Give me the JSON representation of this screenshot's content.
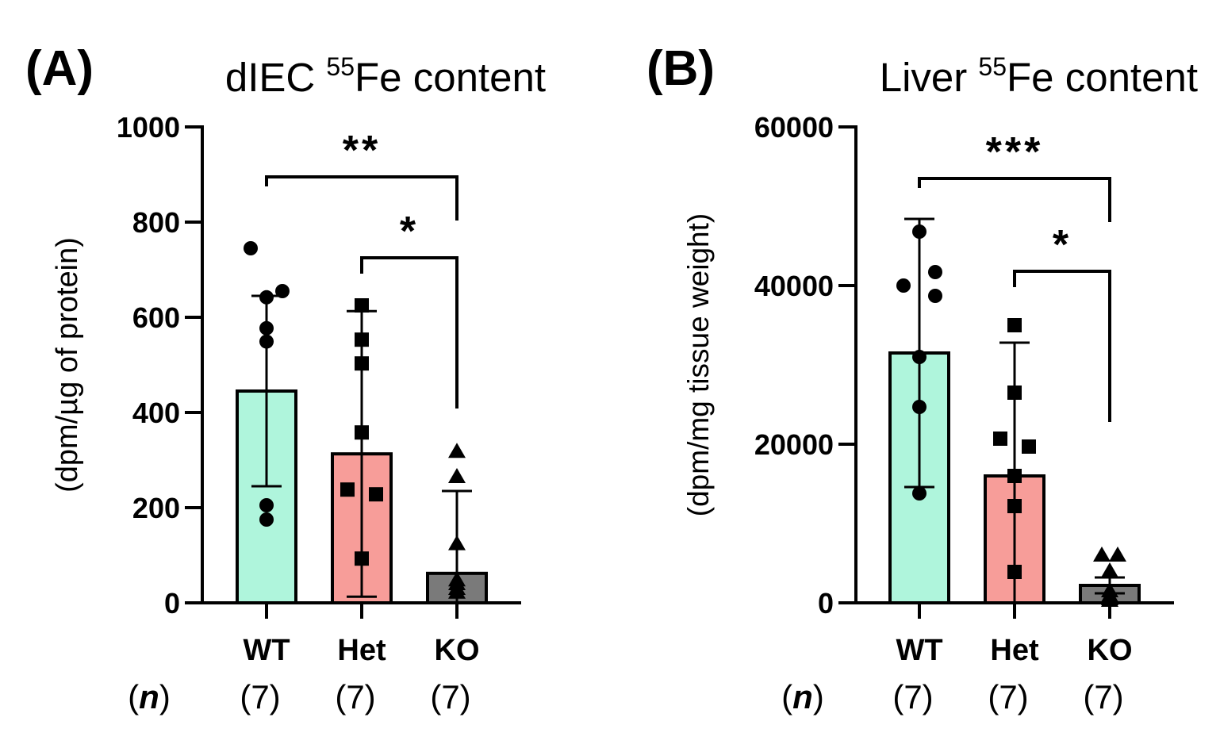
{
  "chart_data": [
    {
      "type": "bar",
      "panel_label": "(A)",
      "title_prefix": "dIEC ",
      "title_sup": "55",
      "title_suffix": "Fe content",
      "ylabel": "(dpm/µg of protein)",
      "ylim": [
        0,
        1000
      ],
      "yticks": [
        0,
        200,
        400,
        600,
        800,
        1000
      ],
      "categories": [
        "WT",
        "Het",
        "KO"
      ],
      "n_header": "n",
      "n_labels": [
        "(7)",
        "(7)",
        "(7)"
      ],
      "means": [
        445,
        313,
        62
      ],
      "sd": [
        200,
        300,
        173
      ],
      "fill_colors": [
        "#aff5dc",
        "#f79d99",
        "#7a7a7a"
      ],
      "points": [
        {
          "category": "WT",
          "marker": "circle",
          "values": [
            745,
            642,
            655,
            577,
            549,
            205,
            175
          ]
        },
        {
          "category": "Het",
          "marker": "square",
          "values": [
            625,
            553,
            503,
            358,
            238,
            228,
            93
          ]
        },
        {
          "category": "KO",
          "marker": "triangle",
          "values": [
            318,
            265,
            124,
            48,
            40,
            30,
            22
          ]
        }
      ],
      "significance": [
        {
          "from": "WT",
          "to": "KO",
          "label": "**",
          "bracket_y": 895
        },
        {
          "from": "Het",
          "to": "KO",
          "label": "*",
          "bracket_y": 725
        }
      ]
    },
    {
      "type": "bar",
      "panel_label": "(B)",
      "title_prefix": "Liver ",
      "title_sup": "55",
      "title_suffix": "Fe content",
      "ylabel": "(dpm/mg tissue weight)",
      "ylim": [
        0,
        60000
      ],
      "yticks": [
        0,
        20000,
        40000,
        60000
      ],
      "categories": [
        "WT",
        "Het",
        "KO"
      ],
      "n_header": "n",
      "n_labels": [
        "(7)",
        "(7)",
        "(7)"
      ],
      "means": [
        31500,
        16000,
        2200
      ],
      "sd": [
        16900,
        16800,
        1000
      ],
      "fill_colors": [
        "#aff5dc",
        "#f79d99",
        "#7a7a7a"
      ],
      "points": [
        {
          "category": "WT",
          "marker": "circle",
          "values": [
            46800,
            41700,
            40000,
            38700,
            31000,
            24700,
            13800
          ]
        },
        {
          "category": "Het",
          "marker": "square",
          "values": [
            35000,
            26500,
            20700,
            19700,
            16000,
            12200,
            3900
          ]
        },
        {
          "category": "KO",
          "marker": "triangle",
          "values": [
            6000,
            6000,
            4000,
            1500,
            900,
            500,
            300
          ]
        }
      ],
      "significance": [
        {
          "from": "WT",
          "to": "KO",
          "label": "***",
          "bracket_y": 53500
        },
        {
          "from": "Het",
          "to": "KO",
          "label": "*",
          "bracket_y": 41800
        }
      ]
    }
  ]
}
